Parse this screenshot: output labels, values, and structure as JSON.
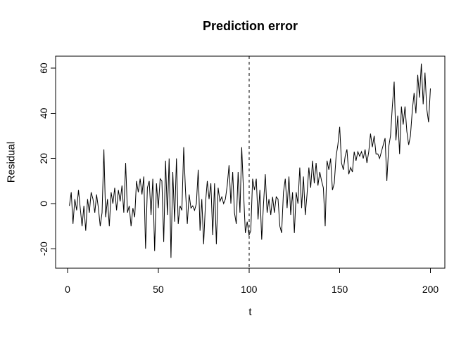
{
  "window": {
    "background": "#ffffff"
  },
  "chart_data": {
    "type": "line",
    "title": "Prediction error",
    "xlabel": "t",
    "ylabel": "Residual",
    "series_name": "Residual",
    "x_start": 1,
    "xlim": [
      0,
      200
    ],
    "ylim": [
      -28,
      66
    ],
    "x_ticks": [
      0,
      50,
      100,
      150,
      200
    ],
    "y_ticks": [
      -20,
      0,
      20,
      40,
      60
    ],
    "grid": false,
    "line_color": "#000000",
    "background": "#ffffff",
    "vline": {
      "x": 100,
      "style": "dashed",
      "color": "#000000"
    },
    "values": [
      -1,
      5,
      -9,
      2,
      -3,
      6,
      -2,
      -10,
      -1,
      -12,
      2,
      -4,
      5,
      2,
      -4,
      4,
      -2,
      -10,
      -4,
      24,
      -6,
      2,
      -10,
      5,
      0,
      7,
      -3,
      6,
      1,
      8,
      -4,
      18,
      -4,
      -1,
      -10,
      -2,
      -6,
      10,
      5,
      11,
      4,
      12,
      -20,
      7,
      10,
      -5,
      11,
      -21,
      9,
      -2,
      11,
      10,
      -17,
      19,
      -5,
      20,
      -24,
      14,
      -8,
      20,
      -9,
      -1,
      -3,
      25,
      6,
      -9,
      4,
      -2,
      -1,
      -3,
      0,
      15,
      -12,
      2,
      -18,
      0,
      10,
      2,
      9,
      -14,
      9,
      -18,
      7,
      1,
      3,
      0,
      2,
      8,
      17,
      0,
      14,
      -4,
      -9,
      14,
      -4,
      25,
      5,
      -13,
      -8,
      -14,
      -12,
      11,
      6,
      11,
      -7,
      6,
      -16,
      0,
      13,
      -4,
      2,
      -5,
      3,
      -4,
      3,
      2,
      -10,
      -13,
      5,
      11,
      -2,
      12,
      -5,
      5,
      -13,
      5,
      0,
      16,
      -2,
      12,
      -5,
      4,
      16,
      7,
      19,
      9,
      18,
      8,
      14,
      10,
      7,
      -10,
      19,
      15,
      20,
      6,
      9,
      21,
      26,
      34,
      18,
      15,
      21,
      24,
      13,
      16,
      14,
      23,
      19,
      23,
      21,
      23,
      20,
      24,
      18,
      23,
      31,
      25,
      30,
      22,
      22,
      20,
      23,
      26,
      29,
      10,
      25,
      30,
      43,
      54,
      28,
      39,
      22,
      43,
      35,
      43,
      32,
      26,
      30,
      41,
      49,
      40,
      57,
      47,
      62,
      44,
      58,
      42,
      36,
      51
    ]
  }
}
